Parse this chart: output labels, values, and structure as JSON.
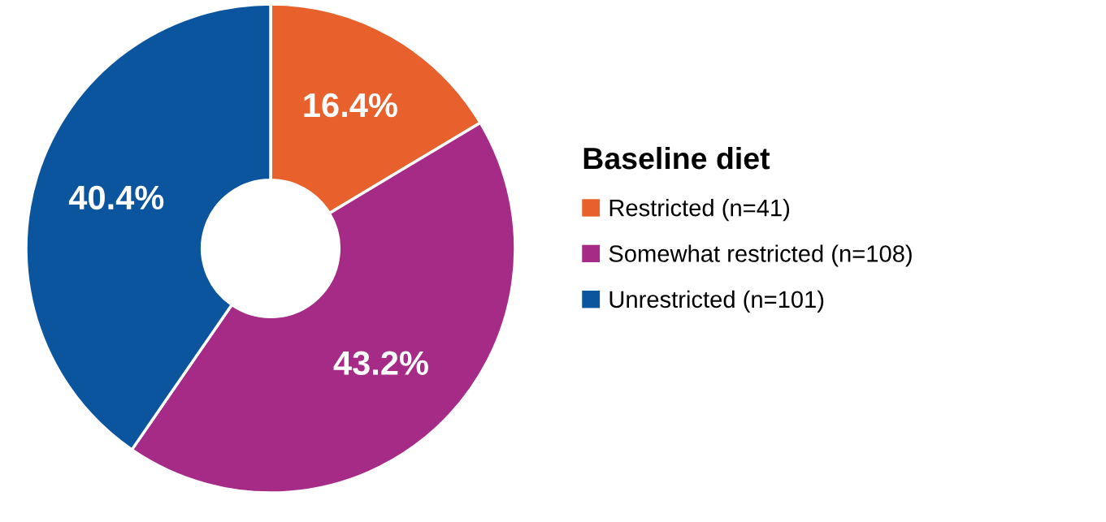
{
  "chart_data": {
    "type": "donut",
    "legend_title": "Baseline diet",
    "legend": "right",
    "categories": [
      "Restricted (n=41)",
      "Somewhat restricted (n=108)",
      "Unrestricted (n=101)"
    ],
    "values": [
      16.4,
      43.2,
      40.4
    ],
    "colors": [
      "#e8612c",
      "#a62b86",
      "#0a559e"
    ],
    "value_labels": [
      "16.4%",
      "43.2%",
      "40.4%"
    ]
  }
}
